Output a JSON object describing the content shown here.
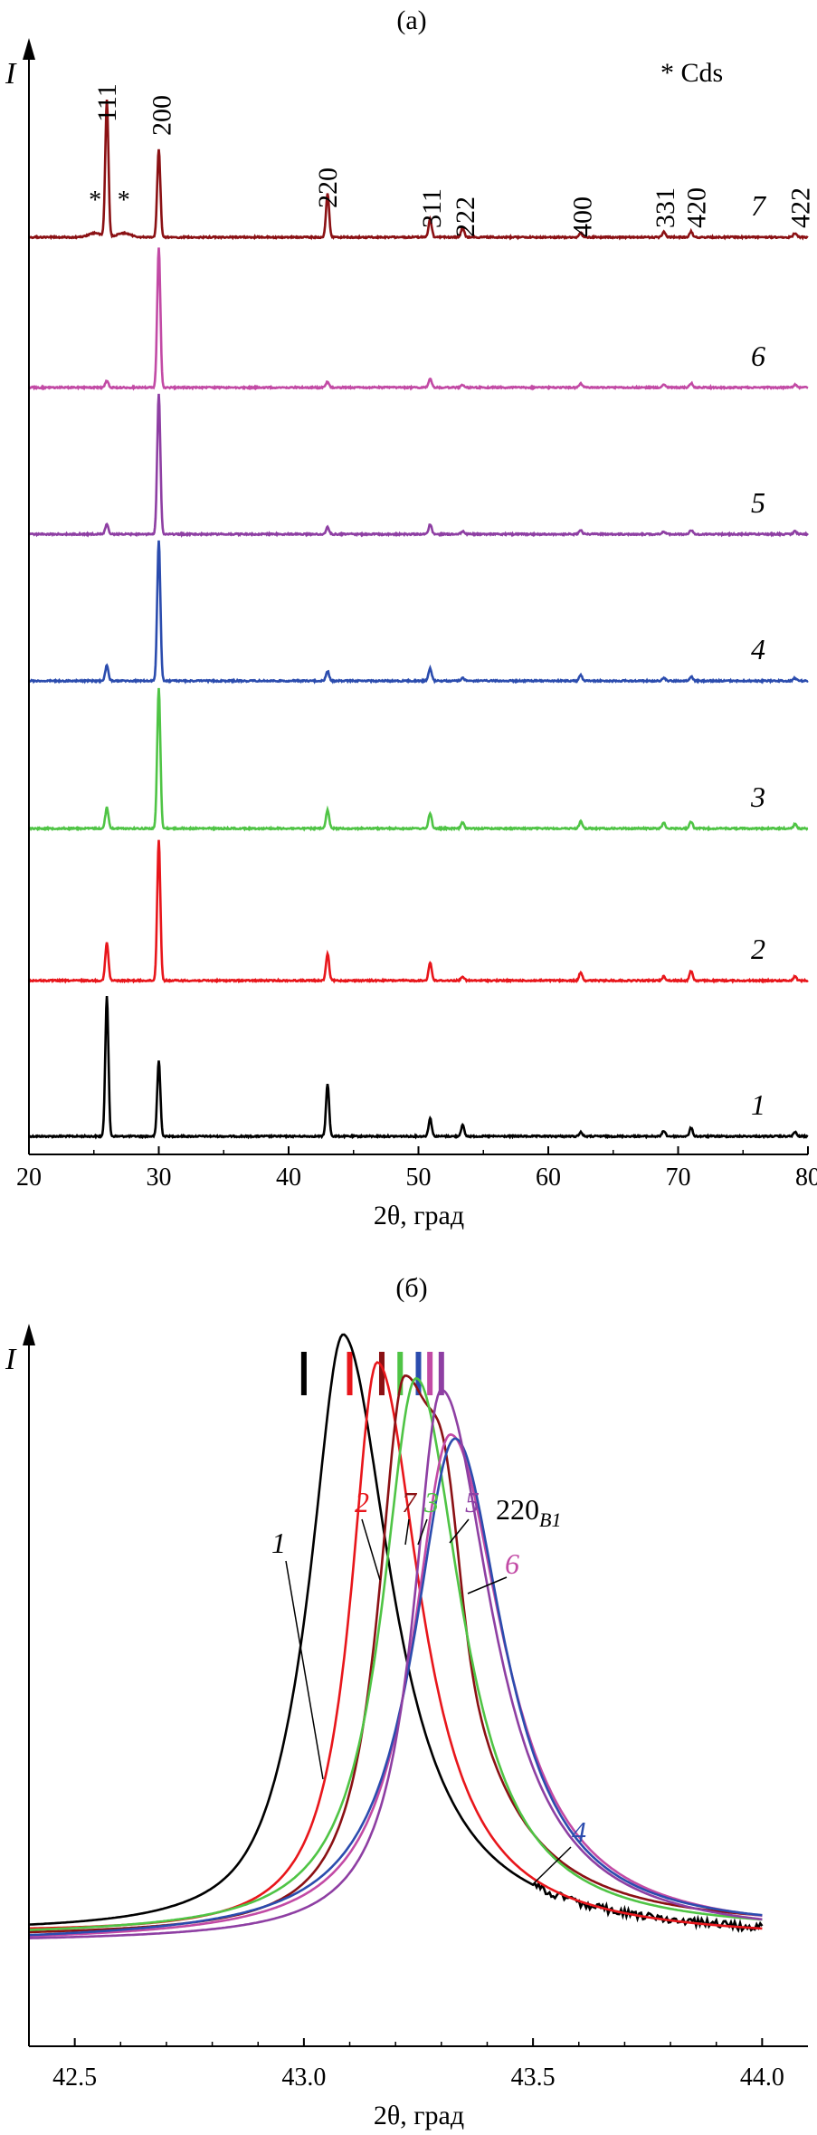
{
  "chart_data": [
    {
      "type": "line",
      "panel_label": "(a)",
      "ylabel": "I",
      "xlabel": "2θ, град",
      "xlim": [
        20,
        80
      ],
      "x_ticks": [
        20,
        30,
        40,
        50,
        60,
        70,
        80
      ],
      "legend_note": "* Cds",
      "hkl_labels": [
        {
          "label": "111",
          "x": 26.0
        },
        {
          "label": "200",
          "x": 30.2
        },
        {
          "label": "220",
          "x": 43.0
        },
        {
          "label": "311",
          "x": 51.0
        },
        {
          "label": "222",
          "x": 53.6
        },
        {
          "label": "400",
          "x": 62.6
        },
        {
          "label": "331",
          "x": 69.0
        },
        {
          "label": "420",
          "x": 71.4
        },
        {
          "label": "422",
          "x": 79.4
        }
      ],
      "cds_markers": [
        25.1,
        27.3
      ],
      "peak_positions": [
        26.0,
        30.0,
        43.0,
        50.9,
        53.4,
        62.5,
        68.9,
        71.0,
        79.0
      ],
      "series": [
        {
          "name": "1",
          "color": "#000000",
          "peak_heights": [
            100,
            54,
            37,
            13,
            8,
            3,
            4,
            6,
            3
          ]
        },
        {
          "name": "2",
          "color": "#e8161b",
          "peak_heights": [
            27,
            100,
            19,
            13,
            3,
            6,
            3,
            7,
            3
          ]
        },
        {
          "name": "3",
          "color": "#4fc445",
          "peak_heights": [
            15,
            100,
            13,
            11,
            4,
            5,
            4,
            5,
            3
          ]
        },
        {
          "name": "4",
          "color": "#2b4cae",
          "peak_heights": [
            11,
            100,
            7,
            9,
            2,
            4,
            2,
            3,
            2
          ]
        },
        {
          "name": "5",
          "color": "#8e3fa3",
          "peak_heights": [
            7,
            100,
            5,
            7,
            2,
            3,
            2,
            3,
            2
          ]
        },
        {
          "name": "6",
          "color": "#c24aa5",
          "peak_heights": [
            5,
            100,
            4,
            6,
            2,
            3,
            2,
            3,
            2
          ]
        },
        {
          "name": "7",
          "color": "#8b1114",
          "peak_heights": [
            97,
            63,
            31,
            13,
            7,
            3,
            4,
            4,
            3
          ]
        }
      ]
    },
    {
      "type": "line",
      "panel_label": "(б)",
      "ylabel": "I",
      "xlabel": "2θ, град",
      "xlim": [
        42.4,
        44.0
      ],
      "x_ticks": [
        "42.5",
        "43.0",
        "43.5",
        "44.0"
      ],
      "peak_label": "220",
      "peak_label_sub": "B1",
      "reference_ticks": [
        {
          "series": "1",
          "x": 43.0
        },
        {
          "series": "2",
          "x": 43.1
        },
        {
          "series": "7",
          "x": 43.17
        },
        {
          "series": "3",
          "x": 43.21
        },
        {
          "series": "4",
          "x": 43.25
        },
        {
          "series": "6",
          "x": 43.275
        },
        {
          "series": "5",
          "x": 43.3
        }
      ],
      "series": [
        {
          "name": "1",
          "color": "#000000",
          "center": 43.088,
          "height": 100,
          "baseline": 2,
          "tail_baseline": 1
        },
        {
          "name": "2",
          "color": "#e8161b",
          "center": 43.16,
          "height": 99,
          "baseline": 2,
          "tail_baseline": 1
        },
        {
          "name": "3",
          "color": "#4fc445",
          "center": 43.245,
          "height": 96,
          "baseline": 1.5,
          "tail_baseline": 2
        },
        {
          "name": "4",
          "color": "#2b4cae",
          "center": 43.33,
          "height": 86,
          "baseline": 0.5,
          "tail_baseline": 2
        },
        {
          "name": "5",
          "color": "#8e3fa3",
          "center": 43.3,
          "height": 95,
          "baseline": 0.5,
          "tail_baseline": 1
        },
        {
          "name": "6",
          "color": "#c24aa5",
          "center": 43.32,
          "height": 87,
          "baseline": 0.5,
          "tail_baseline": 1.5
        },
        {
          "name": "7",
          "color": "#8b1114",
          "center": 43.22,
          "height": 96,
          "baseline": 1.5,
          "tail_baseline": 2.5
        }
      ]
    }
  ]
}
